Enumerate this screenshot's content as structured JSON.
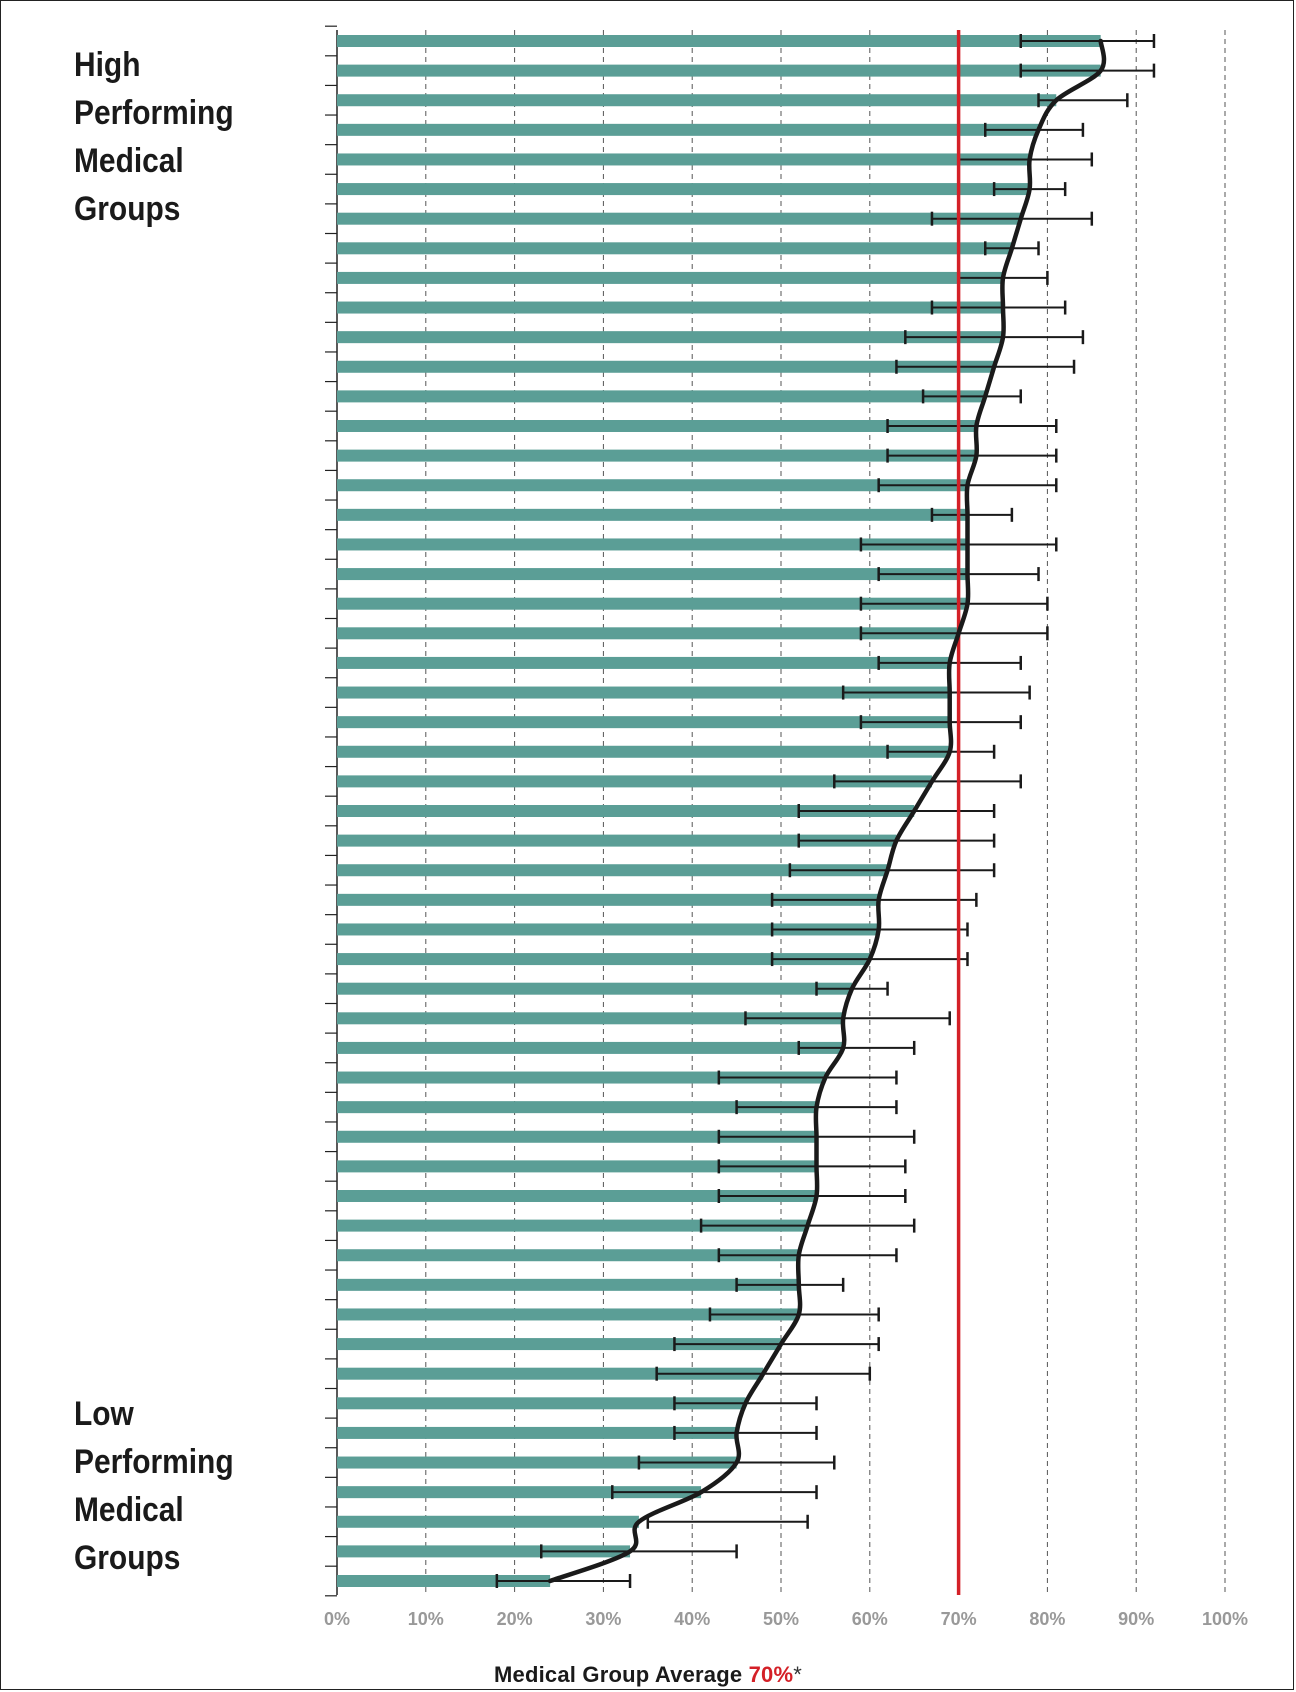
{
  "labels": {
    "high": [
      "High",
      "Performing",
      "Medical",
      "Groups"
    ],
    "low": [
      "Low",
      "Performing",
      "Medical",
      "Groups"
    ]
  },
  "footer": {
    "prefix": "Medical Group Average ",
    "average": "70%",
    "suffix": "*"
  },
  "colors": {
    "bar": "#5b9e96",
    "average_line": "#d42027",
    "trend_line": "#1a1a1a",
    "error_bar": "#1a1a1a",
    "grid": "#555555",
    "tick_label": "#999999"
  },
  "chart_data": {
    "type": "bar",
    "orientation": "horizontal",
    "xlabel": "",
    "ylabel": "",
    "xlim": [
      0,
      100
    ],
    "xticks": [
      "0%",
      "10%",
      "20%",
      "30%",
      "40%",
      "50%",
      "60%",
      "70%",
      "80%",
      "90%",
      "100%"
    ],
    "grid": true,
    "reference_line": 70,
    "values": [
      86,
      86,
      81,
      79,
      78,
      78,
      77,
      76,
      75,
      75,
      75,
      74,
      73,
      72,
      72,
      71,
      71,
      71,
      71,
      71,
      70,
      69,
      69,
      69,
      69,
      67,
      65,
      63,
      62,
      61,
      61,
      60,
      58,
      57,
      57,
      55,
      54,
      54,
      54,
      54,
      53,
      52,
      52,
      52,
      50,
      48,
      46,
      45,
      45,
      41,
      34,
      33,
      24
    ],
    "error_low": [
      77,
      77,
      79,
      73,
      70,
      74,
      67,
      73,
      70,
      67,
      64,
      63,
      66,
      62,
      62,
      61,
      67,
      59,
      61,
      59,
      59,
      61,
      57,
      59,
      62,
      56,
      52,
      52,
      51,
      49,
      49,
      49,
      54,
      46,
      52,
      43,
      45,
      43,
      43,
      43,
      41,
      43,
      45,
      42,
      38,
      36,
      38,
      38,
      34,
      31,
      35,
      23,
      18
    ],
    "error_high": [
      92,
      92,
      89,
      84,
      85,
      82,
      85,
      79,
      80,
      82,
      84,
      83,
      77,
      81,
      81,
      81,
      76,
      81,
      79,
      80,
      80,
      77,
      78,
      77,
      74,
      77,
      74,
      74,
      74,
      72,
      71,
      71,
      62,
      69,
      65,
      63,
      63,
      65,
      64,
      64,
      65,
      63,
      57,
      61,
      61,
      60,
      54,
      54,
      56,
      54,
      53,
      45,
      33
    ]
  }
}
